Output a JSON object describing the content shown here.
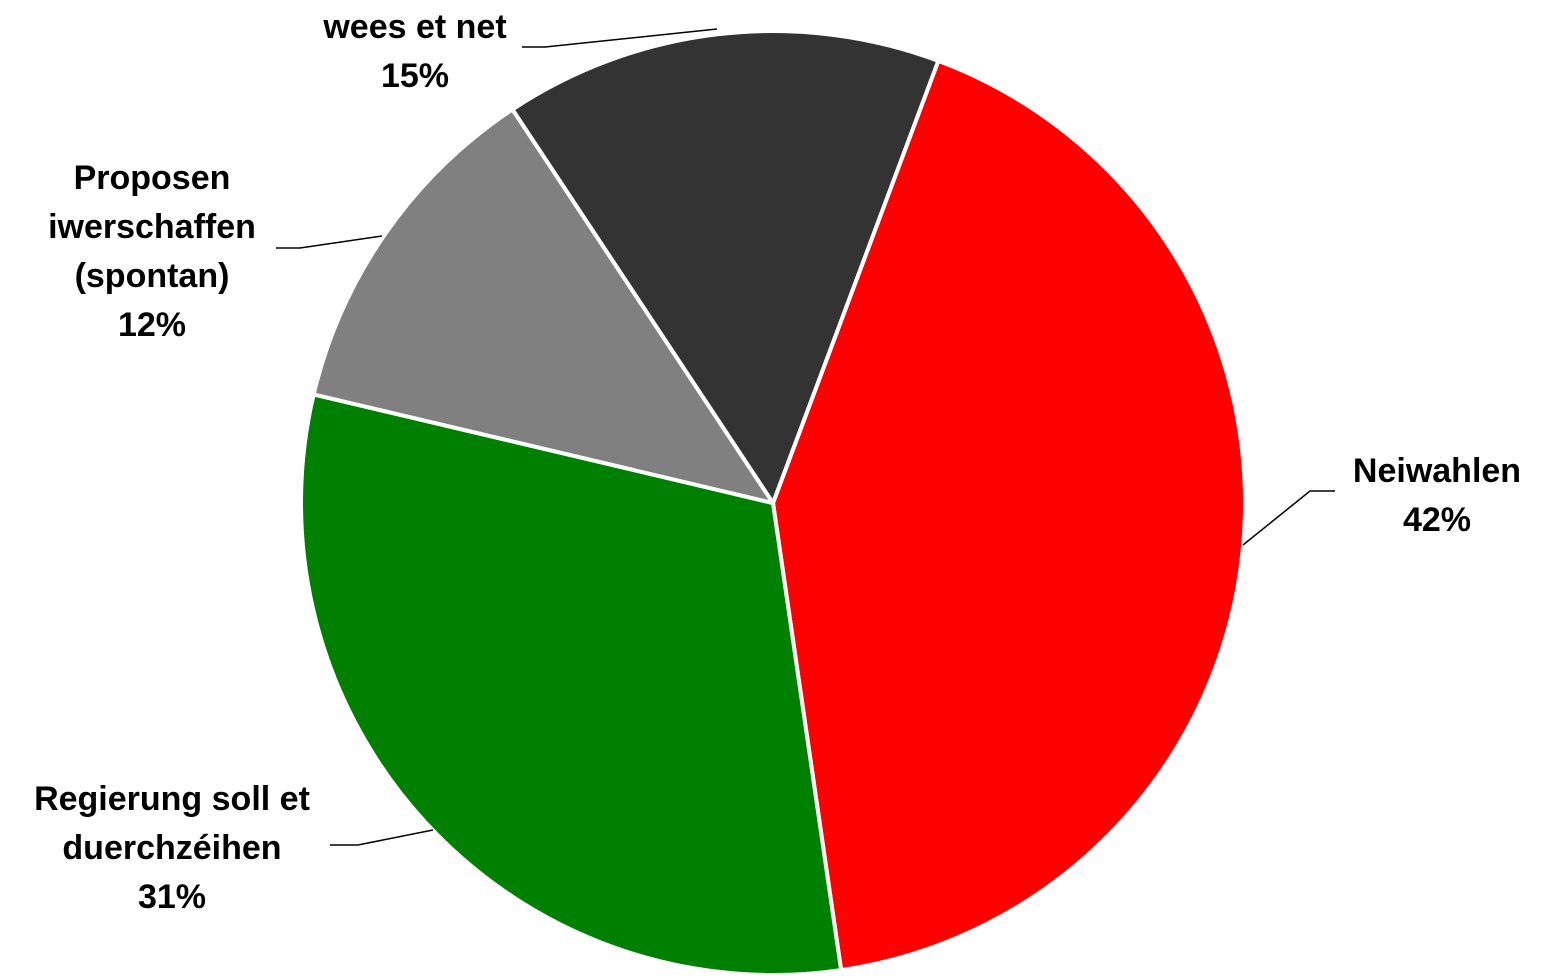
{
  "chart_data": {
    "type": "pie",
    "title": "",
    "slices": [
      {
        "label": [
          "Neiwahlen"
        ],
        "value": 42,
        "value_label": "42%",
        "color": "#ff0000"
      },
      {
        "label": [
          "Regierung soll et",
          "duerchzéihen"
        ],
        "value": 31,
        "value_label": "31%",
        "color": "#008000"
      },
      {
        "label": [
          "Proposen",
          "iwerschaffen",
          "(spontan)"
        ],
        "value": 12,
        "value_label": "12%",
        "color": "#808080"
      },
      {
        "label": [
          "wees et net"
        ],
        "value": 15,
        "value_label": "15%",
        "color": "#333333"
      }
    ],
    "start_direction": "clockwise from top-right",
    "legend": "none",
    "data_labels": "outside with leader lines"
  }
}
